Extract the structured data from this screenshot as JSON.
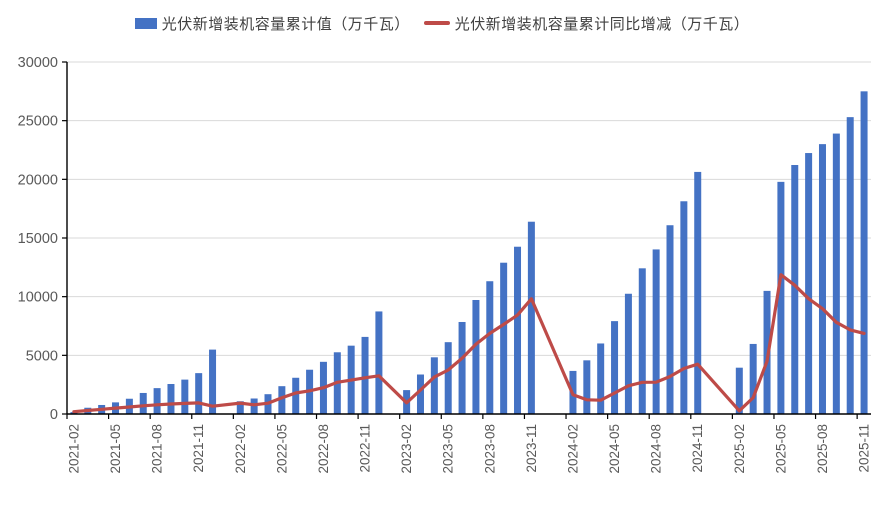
{
  "legend": {
    "bar_label": "光伏新增装机容量累计值（万千瓦）",
    "line_label": "光伏新增装机容量累计同比增减（万千瓦）"
  },
  "colors": {
    "bar": "#4472C4",
    "line": "#BE4B48",
    "grid": "#D9D9D9",
    "axis": "#000000",
    "tick_text": "#595959",
    "legend_text": "#404040"
  },
  "chart_data": {
    "type": "bar",
    "title": "",
    "xlabel": "",
    "ylabel": "",
    "ylim": [
      0,
      30000
    ],
    "ytick_interval": 5000,
    "ytick_labels": [
      "0",
      "5000",
      "10000",
      "15000",
      "20000",
      "25000",
      "30000"
    ],
    "grid": true,
    "legend_position": "top",
    "x": [
      "2021-02",
      "2021-03",
      "2021-04",
      "2021-05",
      "2021-06",
      "2021-07",
      "2021-08",
      "2021-09",
      "2021-10",
      "2021-11",
      "2021-12",
      "2022-01",
      "2022-02",
      "2022-03",
      "2022-04",
      "2022-05",
      "2022-06",
      "2022-07",
      "2022-08",
      "2022-09",
      "2022-10",
      "2022-11",
      "2022-12",
      "2023-01",
      "2023-02",
      "2023-03",
      "2023-04",
      "2023-05",
      "2023-06",
      "2023-07",
      "2023-08",
      "2023-09",
      "2023-10",
      "2023-11",
      "2023-12",
      "2024-01",
      "2024-02",
      "2024-03",
      "2024-04",
      "2024-05",
      "2024-06",
      "2024-07",
      "2024-08",
      "2024-09",
      "2024-10",
      "2024-11",
      "2024-12",
      "2025-01",
      "2025-02",
      "2025-03",
      "2025-04",
      "2025-05",
      "2025-06",
      "2025-07",
      "2025-08",
      "2025-09",
      "2025-10",
      "2025-11"
    ],
    "xtick_labels": [
      "2021-02",
      "2021-05",
      "2021-08",
      "2021-11",
      "2022-02",
      "2022-05",
      "2022-08",
      "2022-11",
      "2023-02",
      "2023-05",
      "2023-08",
      "2023-11",
      "2024-02",
      "2024-05",
      "2024-08",
      "2024-11",
      "2025-02",
      "2025-05",
      "2025-08",
      "2025-11"
    ],
    "xtick_label_every": 3,
    "series": [
      {
        "name": "光伏新增装机容量累计值（万千瓦）",
        "type": "bar",
        "values": [
          160,
          533,
          769,
          991,
          1301,
          1793,
          2205,
          2556,
          2931,
          3483,
          5488,
          null,
          1086,
          1321,
          1688,
          2371,
          3088,
          3773,
          4447,
          5260,
          5824,
          6571,
          8741,
          null,
          2037,
          3366,
          4831,
          6121,
          7842,
          9716,
          11316,
          12894,
          14256,
          16388,
          null,
          null,
          3672,
          4574,
          6011,
          7915,
          10248,
          12416,
          14026,
          16088,
          18130,
          20632,
          null,
          null,
          3947,
          5971,
          10493,
          19785,
          21221,
          22240,
          23000,
          23900,
          25300,
          27500
        ]
      },
      {
        "name": "光伏新增装机容量累计同比增减（万千瓦）",
        "type": "line",
        "values": [
          200,
          300,
          400,
          500,
          600,
          700,
          780,
          850,
          900,
          950,
          668,
          null,
          926,
          788,
          919,
          1380,
          1787,
          1980,
          2242,
          2704,
          2893,
          3088,
          3253,
          null,
          951,
          2045,
          3143,
          3750,
          4754,
          5943,
          6869,
          7634,
          8432,
          9817,
          null,
          null,
          1635,
          1208,
          1180,
          1794,
          2406,
          2700,
          2710,
          3194,
          3874,
          4244,
          null,
          null,
          275,
          1397,
          4482,
          11870,
          10973,
          9824,
          8974,
          7812,
          7170,
          6868
        ]
      }
    ]
  }
}
